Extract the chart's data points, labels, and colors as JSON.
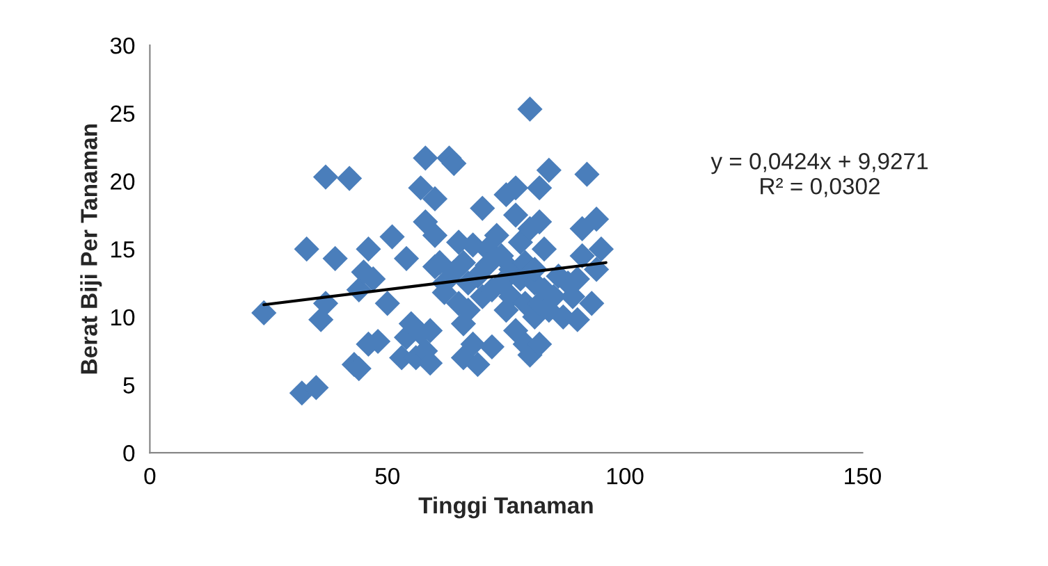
{
  "chart_data": {
    "type": "scatter",
    "xlabel": "Tinggi Tanaman",
    "ylabel": "Berat Biji Per Tanaman",
    "xlim": [
      0,
      150
    ],
    "xticks": [
      0,
      50,
      100,
      150
    ],
    "ylim": [
      0,
      30
    ],
    "yticks": [
      0,
      5,
      10,
      15,
      20,
      25,
      30
    ],
    "grid": false,
    "legend": false,
    "annotations": [
      "y = 0,0424x + 9,9271\nR² = 0,0302"
    ],
    "series": [
      {
        "marker": "diamond",
        "color": "#4a7ebb",
        "x": [
          24,
          32,
          33,
          35,
          36,
          37,
          37,
          39,
          42,
          43,
          44,
          44,
          45,
          46,
          46,
          47,
          48,
          50,
          51,
          53,
          54,
          54,
          55,
          56,
          57,
          57,
          58,
          58,
          58,
          59,
          59,
          60,
          60,
          60,
          61,
          62,
          62,
          63,
          64,
          64,
          65,
          65,
          66,
          66,
          66,
          67,
          67,
          68,
          68,
          69,
          69,
          70,
          70,
          71,
          71,
          72,
          72,
          73,
          74,
          74,
          75,
          75,
          76,
          76,
          77,
          77,
          77,
          78,
          78,
          79,
          79,
          79,
          80,
          80,
          80,
          81,
          81,
          81,
          82,
          82,
          82,
          82,
          83,
          83,
          84,
          84,
          85,
          86,
          87,
          88,
          89,
          90,
          90,
          91,
          91,
          92,
          93,
          94,
          94,
          95
        ],
        "values": [
          10.3,
          4.4,
          15,
          4.8,
          9.8,
          20.3,
          11,
          14.3,
          20.2,
          6.5,
          6.2,
          12,
          13.3,
          8,
          15,
          12.8,
          8.2,
          11,
          15.9,
          7,
          8.5,
          14.3,
          9.5,
          7,
          19.5,
          8.8,
          21.7,
          17,
          7.5,
          9,
          6.6,
          16,
          18.7,
          13.7,
          14,
          12.5,
          11.8,
          21.7,
          21.3,
          13.3,
          15.5,
          11,
          14,
          9.5,
          7,
          12.5,
          10.5,
          8,
          15.3,
          6.5,
          13,
          18,
          11.5,
          15,
          13.8,
          12,
          7.8,
          16,
          14.5,
          12.5,
          19,
          10.5,
          13.5,
          11.5,
          19.5,
          17.5,
          9,
          15.5,
          12.8,
          8,
          11,
          14,
          25.3,
          16.5,
          7.2,
          12.5,
          10,
          13.5,
          19.5,
          17,
          8,
          11,
          15,
          12,
          20.8,
          10.5,
          11.5,
          13,
          10,
          12.5,
          11.5,
          9.8,
          12.8,
          14.5,
          16.5,
          20.5,
          11,
          17.2,
          13.5,
          15
        ]
      },
      {
        "type": "line",
        "color": "#000000",
        "marker": "none",
        "line_style": "solid",
        "x": [
          24,
          96
        ],
        "values": [
          10.9,
          14.0
        ]
      }
    ]
  }
}
